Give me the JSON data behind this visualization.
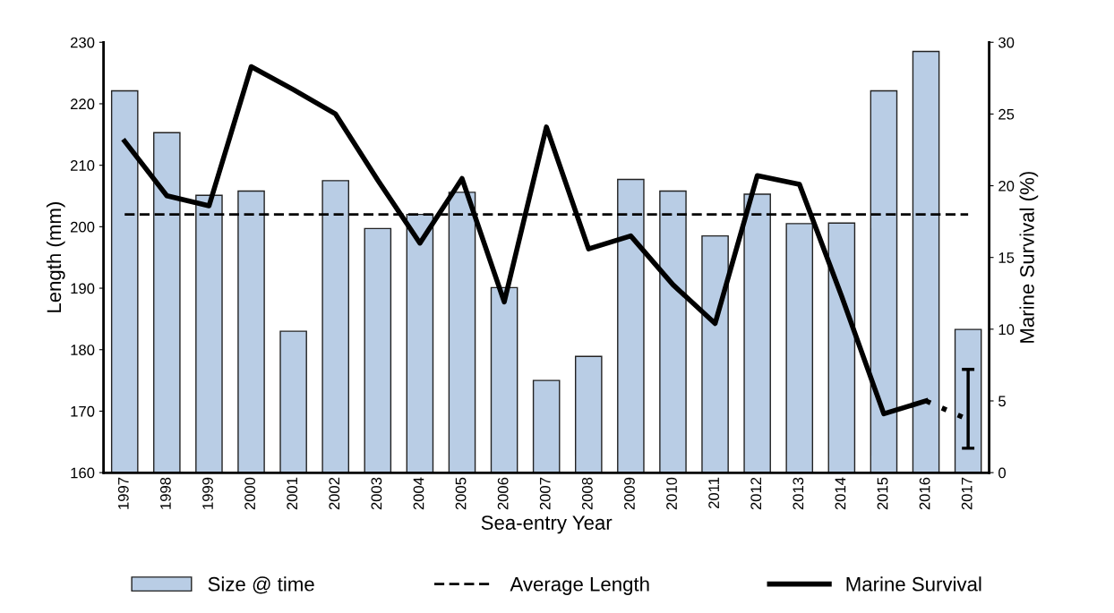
{
  "chart_data": {
    "type": "bar",
    "xlabel": "Sea-entry Year",
    "ylabel": "Length (mm)",
    "y2label": "Marine Survival (%)",
    "categories": [
      "1997",
      "1998",
      "1999",
      "2000",
      "2001",
      "2002",
      "2003",
      "2004",
      "2005",
      "2006",
      "2007",
      "2008",
      "2009",
      "2010",
      "2011",
      "2012",
      "2013",
      "2014",
      "2015",
      "2016",
      "2017"
    ],
    "series": [
      {
        "name": "Size @ time",
        "color": "#b9cde5",
        "values": [
          222.1,
          215.3,
          205.1,
          205.8,
          183,
          207.5,
          199.7,
          202,
          205.6,
          190.1,
          175,
          178.9,
          207.7,
          205.8,
          198.5,
          205.3,
          200.5,
          200.6,
          222.1,
          228.5,
          183.3
        ]
      },
      {
        "name": "Average Length",
        "type": "line",
        "color": "#000000",
        "line_style": "dashed",
        "values": [
          202,
          202,
          202,
          202,
          202,
          202,
          202,
          202,
          202,
          202,
          202,
          202,
          202,
          202,
          202,
          202,
          202,
          202,
          202,
          202,
          202
        ]
      },
      {
        "name": "Marine Survival",
        "type": "line",
        "axis": "y2",
        "color": "#000000",
        "line_style": "solid",
        "values": [
          23.1,
          19.3,
          18.6,
          28.3,
          26.7,
          25.0,
          20.4,
          16.0,
          20.5,
          11.9,
          24.1,
          15.6,
          16.5,
          13.1,
          10.4,
          20.7,
          20.1,
          12.3,
          4.1,
          5.0,
          null
        ]
      },
      {
        "type": "line",
        "axis": "y2",
        "color": "#000000",
        "line_style": "dotted",
        "values": [
          null,
          null,
          null,
          null,
          null,
          null,
          null,
          null,
          null,
          null,
          null,
          null,
          null,
          null,
          null,
          null,
          null,
          null,
          null,
          5.0,
          3.7
        ],
        "errors": [
          null,
          null,
          null,
          null,
          null,
          null,
          null,
          null,
          null,
          null,
          null,
          null,
          null,
          null,
          null,
          null,
          null,
          null,
          null,
          null,
          [
            1.7,
            7.2
          ]
        ]
      }
    ],
    "ylim": [
      160,
      230
    ],
    "yticks": [
      160,
      170,
      180,
      190,
      200,
      210,
      220,
      230
    ],
    "y2lim": [
      0,
      30
    ],
    "y2ticks": [
      0,
      5,
      10,
      15,
      20,
      25,
      30
    ],
    "legend": "bottom",
    "grid": false
  }
}
